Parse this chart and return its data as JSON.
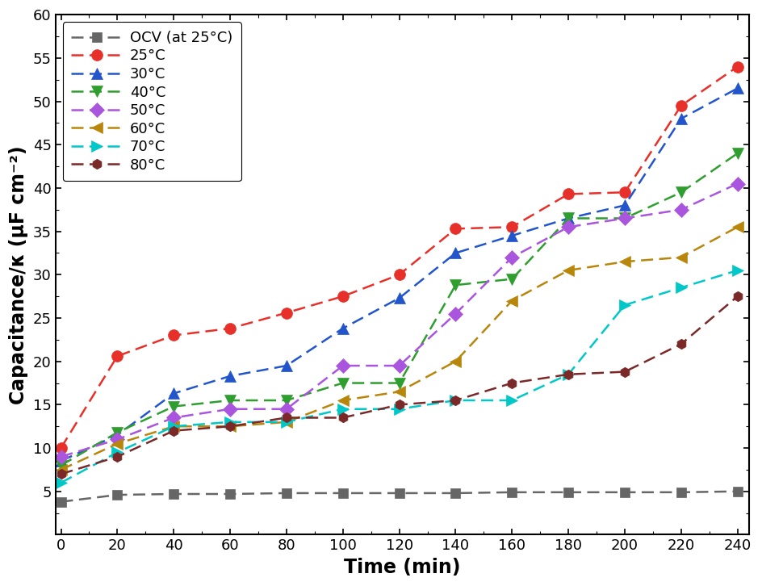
{
  "time": [
    0,
    20,
    40,
    60,
    80,
    100,
    120,
    140,
    160,
    180,
    200,
    220,
    240
  ],
  "series": [
    {
      "label": "OCV (at 25°C)",
      "color": "#666666",
      "linestyle": "dashed",
      "marker": "s",
      "markersize": 9,
      "values": [
        3.8,
        4.6,
        4.7,
        4.7,
        4.8,
        4.8,
        4.8,
        4.8,
        4.9,
        4.9,
        4.9,
        4.9,
        5.0
      ]
    },
    {
      "label": "25°C",
      "color": "#e8302a",
      "linestyle": "dashed",
      "marker": "o",
      "markersize": 10,
      "values": [
        10.0,
        20.6,
        23.0,
        23.8,
        25.6,
        27.5,
        30.0,
        35.3,
        35.5,
        39.3,
        39.5,
        49.5,
        54.0
      ]
    },
    {
      "label": "30°C",
      "color": "#2255cc",
      "linestyle": "dashed",
      "marker": "^",
      "markersize": 10,
      "values": [
        8.5,
        11.5,
        16.3,
        18.3,
        19.5,
        23.8,
        27.3,
        32.5,
        34.5,
        36.5,
        38.0,
        48.0,
        51.5
      ]
    },
    {
      "label": "40°C",
      "color": "#2e9e2e",
      "linestyle": "dashed",
      "marker": "v",
      "markersize": 10,
      "values": [
        8.0,
        11.8,
        14.8,
        15.5,
        15.5,
        17.5,
        17.5,
        28.8,
        29.5,
        36.5,
        36.5,
        39.5,
        44.0
      ]
    },
    {
      "label": "50°C",
      "color": "#aa55dd",
      "linestyle": "dashed",
      "marker": "D",
      "markersize": 9,
      "values": [
        9.0,
        11.0,
        13.5,
        14.5,
        14.5,
        19.5,
        19.5,
        25.5,
        32.0,
        35.5,
        36.5,
        37.5,
        40.5
      ]
    },
    {
      "label": "60°C",
      "color": "#b8860b",
      "linestyle": "dashed",
      "marker": "<",
      "markersize": 10,
      "values": [
        7.5,
        10.5,
        12.5,
        12.5,
        13.0,
        15.5,
        16.5,
        20.0,
        27.0,
        30.5,
        31.5,
        32.0,
        35.5
      ]
    },
    {
      "label": "70°C",
      "color": "#00c8c8",
      "linestyle": "dashed",
      "marker": ">",
      "markersize": 10,
      "values": [
        6.0,
        9.5,
        12.5,
        13.0,
        13.0,
        14.5,
        14.5,
        15.5,
        15.5,
        18.5,
        26.5,
        28.5,
        30.5
      ]
    },
    {
      "label": "80°C",
      "color": "#7b2828",
      "linestyle": "dashed",
      "marker": "h",
      "markersize": 9,
      "values": [
        7.0,
        9.0,
        12.0,
        12.5,
        13.5,
        13.5,
        15.0,
        15.5,
        17.5,
        18.5,
        18.8,
        22.0,
        27.5
      ]
    }
  ],
  "xlabel": "Time (min)",
  "ylabel": "Capacitance/κ (μF cm⁻²)",
  "xlim": [
    -2,
    244
  ],
  "ylim": [
    0,
    60
  ],
  "xticks": [
    0,
    20,
    40,
    60,
    80,
    100,
    120,
    140,
    160,
    180,
    200,
    220,
    240
  ],
  "yticks": [
    5,
    10,
    15,
    20,
    25,
    30,
    35,
    40,
    45,
    50,
    55,
    60
  ],
  "background_color": "#ffffff"
}
